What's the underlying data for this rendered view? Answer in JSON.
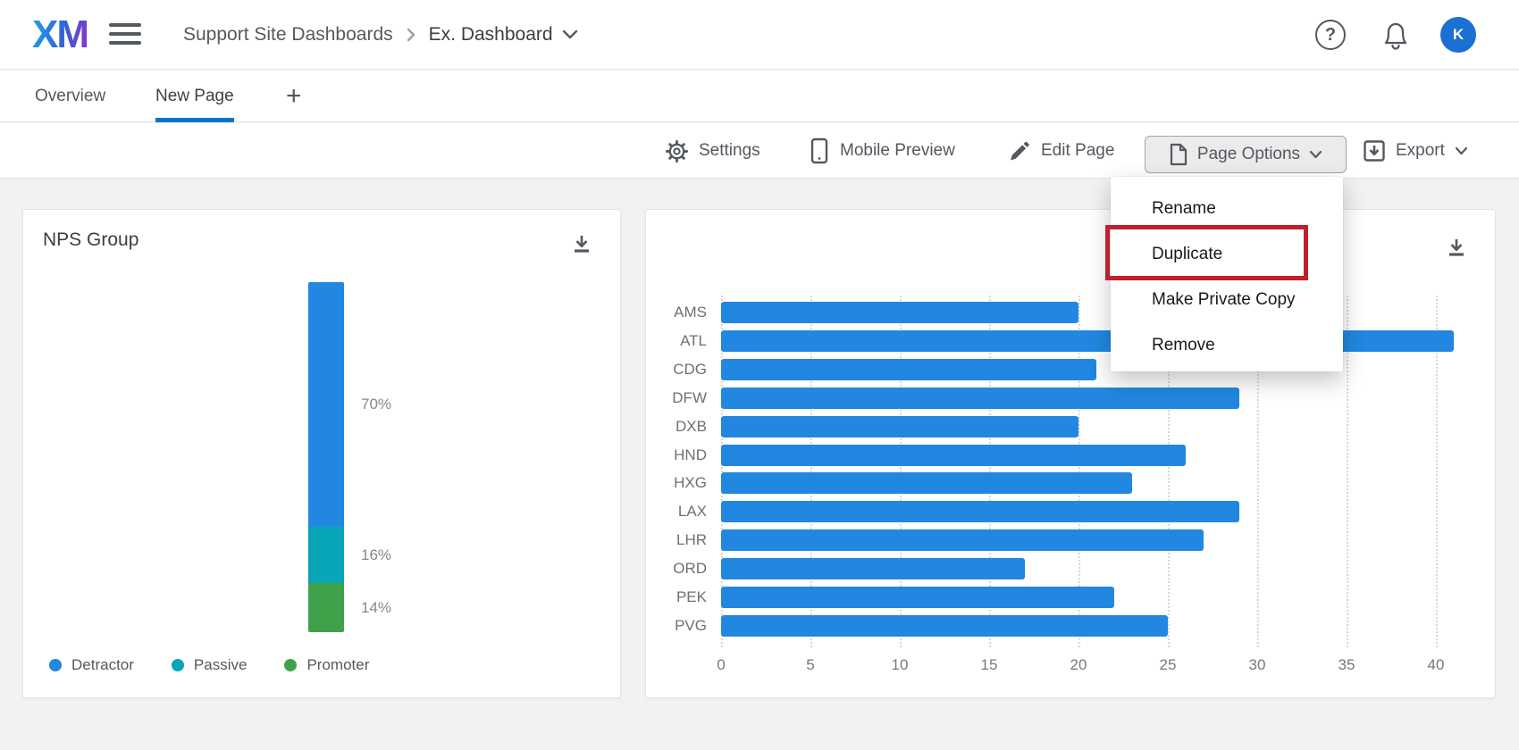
{
  "header": {
    "logo_text": "XM",
    "breadcrumb": {
      "parent": "Support Site Dashboards",
      "separator": "›",
      "current": "Ex. Dashboard"
    },
    "help_glyph": "?",
    "avatar_initial": "K"
  },
  "tabs": {
    "items": [
      {
        "label": "Overview",
        "active": false
      },
      {
        "label": "New Page",
        "active": true
      }
    ],
    "add_label": "+"
  },
  "view_icons": [
    "checklist-view-icon",
    "outline-list-view-icon",
    "bar-chart-view-icon",
    "scatter-view-icon",
    "share-view-icon",
    "present-view-icon"
  ],
  "toolbar": {
    "settings_label": "Settings",
    "mobile_preview_label": "Mobile Preview",
    "edit_page_label": "Edit Page",
    "page_options_label": "Page Options",
    "export_label": "Export"
  },
  "menu": {
    "items": [
      "Rename",
      "Duplicate",
      "Make Private Copy",
      "Remove"
    ],
    "highlighted_item": "Duplicate"
  },
  "colors": {
    "bar_blue": "#2187e0",
    "teal": "#09a5b8",
    "green": "#3fa24a",
    "tab_accent": "#0b74c4",
    "annotation_red": "#c01f2f",
    "avatar_blue": "#1b70d2"
  },
  "chart_data": [
    {
      "type": "bar",
      "subtype": "stacked-column",
      "title": "NPS Group",
      "categories": [
        "NPS Group"
      ],
      "series": [
        {
          "name": "Detractor",
          "values": [
            70
          ],
          "color": "#2187e0",
          "label": "70%"
        },
        {
          "name": "Passive",
          "values": [
            16
          ],
          "color": "#09a5b8",
          "label": "16%"
        },
        {
          "name": "Promoter",
          "values": [
            14
          ],
          "color": "#3fa24a",
          "label": "14%"
        }
      ],
      "unit": "%",
      "legend_position": "bottom",
      "grid": false
    },
    {
      "type": "bar",
      "orientation": "horizontal",
      "title": "",
      "categories": [
        "AMS",
        "ATL",
        "CDG",
        "DFW",
        "DXB",
        "HND",
        "HXG",
        "LAX",
        "LHR",
        "ORD",
        "PEK",
        "PVG"
      ],
      "values": [
        20,
        41,
        21,
        29,
        20,
        26,
        23,
        29,
        27,
        17,
        22,
        25
      ],
      "xlabel": "",
      "ylabel": "",
      "xlim": [
        0,
        42
      ],
      "xticks": [
        0,
        5,
        10,
        15,
        20,
        25,
        30,
        35,
        40
      ],
      "bar_color": "#2187e0",
      "grid": "vertical-dotted",
      "legend_position": "none"
    }
  ]
}
